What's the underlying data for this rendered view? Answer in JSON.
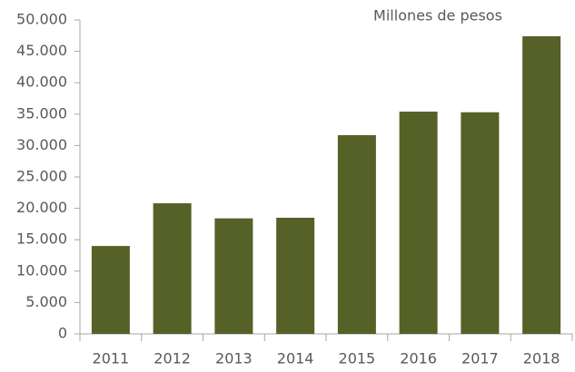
{
  "chart_data": {
    "type": "bar",
    "annotation": "Millones de pesos",
    "categories": [
      "2011",
      "2012",
      "2013",
      "2014",
      "2015",
      "2016",
      "2017",
      "2018"
    ],
    "values": [
      14000,
      20800,
      18400,
      18500,
      31650,
      35400,
      35300,
      47400
    ],
    "color": "#556127",
    "ylim": [
      0,
      50000
    ],
    "yticks": [
      0,
      {
        "value": 5000,
        "label": "5.000"
      },
      {
        "value": 10000,
        "label": "10.000"
      },
      {
        "value": 15000,
        "label": "15.000"
      },
      {
        "value": 20000,
        "label": "20.000"
      },
      {
        "value": 25000,
        "label": "25.000"
      },
      {
        "value": 30000,
        "label": "30.000"
      },
      {
        "value": 35000,
        "label": "35.000"
      },
      {
        "value": 40000,
        "label": "40.000"
      },
      {
        "value": 45000,
        "label": "45.000"
      },
      {
        "value": 50000,
        "label": "50.000"
      }
    ],
    "grid": false
  }
}
